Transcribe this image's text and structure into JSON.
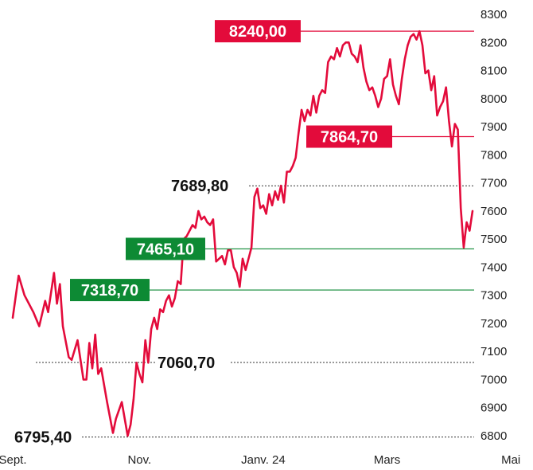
{
  "chart_data": {
    "type": "line",
    "title": "",
    "xlabel": "",
    "ylabel": "",
    "ylim": [
      6800,
      8300
    ],
    "yticks": [
      6800,
      6900,
      7000,
      7100,
      7200,
      7300,
      7400,
      7500,
      7600,
      7700,
      7800,
      7900,
      8000,
      8100,
      8200,
      8300
    ],
    "xtick_labels": [
      "Sept.",
      "Nov.",
      "Janv. 24",
      "Mars",
      "Mai"
    ],
    "xtick_index": [
      0,
      43,
      85,
      127,
      169
    ],
    "grid": false,
    "colors": {
      "line": "#e30b3b",
      "resistance": "#e30b3b",
      "support": "#0d8a34",
      "guide": "#333333"
    },
    "series": [
      {
        "values": [
          7220,
          7370,
          7300,
          7240,
          7190,
          7280,
          7240,
          7380,
          7270,
          7340,
          7190,
          7080,
          7070,
          7140,
          7000,
          7000,
          7130,
          7040,
          7160,
          7020,
          7040,
          6920,
          6810,
          6860,
          6920,
          6800,
          6840,
          6930,
          7060,
          7020,
          6990,
          7140,
          7060,
          7180,
          7220,
          7180,
          7250,
          7240,
          7280,
          7300,
          7260,
          7290,
          7350,
          7340,
          7500,
          7510,
          7530,
          7550,
          7540,
          7600,
          7570,
          7580,
          7560,
          7550,
          7570,
          7420,
          7430,
          7440,
          7410,
          7460,
          7460,
          7400,
          7380,
          7330,
          7430,
          7390,
          7430,
          7470,
          7650,
          7680,
          7610,
          7620,
          7590,
          7660,
          7620,
          7670,
          7640,
          7690,
          7630,
          7740,
          7740,
          7760,
          7790,
          7880,
          7960,
          7920,
          7960,
          7940,
          8010,
          7950,
          8010,
          8030,
          8020,
          8130,
          8150,
          8140,
          8180,
          8150,
          8190,
          8200,
          8200,
          8160,
          8150,
          8130,
          8190,
          8110,
          8060,
          8030,
          8040,
          8010,
          7970,
          8000,
          8070,
          8080,
          8140,
          8050,
          8010,
          7980,
          8070,
          8140,
          8190,
          8220,
          8230,
          8210,
          8240,
          8190,
          8090,
          8100,
          8030,
          8080,
          7940,
          7970,
          7990,
          8040,
          7920,
          7830,
          7910,
          7890,
          7610,
          7470,
          7560,
          7530,
          7600
        ],
        "x_index": [
          0,
          2,
          4,
          7,
          9,
          11,
          12,
          14,
          15,
          16,
          17,
          19,
          20,
          22,
          24,
          25,
          26,
          27,
          28,
          29,
          30,
          32,
          34,
          35,
          37,
          39,
          40,
          41,
          42,
          43,
          44,
          45,
          46,
          47,
          48,
          49,
          50,
          51,
          52,
          53,
          54,
          55,
          56,
          57,
          58,
          59,
          60,
          61,
          62,
          63,
          64,
          65,
          66,
          67,
          68,
          69,
          70,
          71,
          72,
          73,
          74,
          75,
          76,
          77,
          78,
          79,
          80,
          81,
          82,
          83,
          84,
          85,
          86,
          87,
          88,
          89,
          90,
          91,
          92,
          93,
          94,
          95,
          96,
          97,
          98,
          99,
          100,
          101,
          102,
          103,
          104,
          105,
          106,
          107,
          108,
          109,
          110,
          111,
          112,
          113,
          114,
          115,
          116,
          117,
          118,
          119,
          120,
          121,
          122,
          123,
          124,
          125,
          126,
          127,
          128,
          129,
          130,
          131,
          132,
          133,
          134,
          135,
          136,
          137,
          138,
          139,
          140,
          141,
          142,
          143,
          144,
          145,
          146,
          147,
          148,
          149,
          150,
          151,
          152,
          153,
          154,
          155,
          156
        ]
      }
    ],
    "reference_lines": [
      {
        "value": 8240.0,
        "text": "8240,00",
        "kind": "resistance",
        "style": "boxed-red"
      },
      {
        "value": 7864.7,
        "text": "7864,70",
        "kind": "resistance",
        "style": "boxed-red"
      },
      {
        "value": 7689.8,
        "text": "7689,80",
        "kind": "guide",
        "style": "plain"
      },
      {
        "value": 7465.1,
        "text": "7465,10",
        "kind": "support",
        "style": "boxed-green"
      },
      {
        "value": 7318.7,
        "text": "7318,70",
        "kind": "support",
        "style": "boxed-green"
      },
      {
        "value": 7060.7,
        "text": "7060,70",
        "kind": "guide",
        "style": "plain"
      },
      {
        "value": 6795.4,
        "text": "6795,40",
        "kind": "guide",
        "style": "plain"
      }
    ]
  }
}
